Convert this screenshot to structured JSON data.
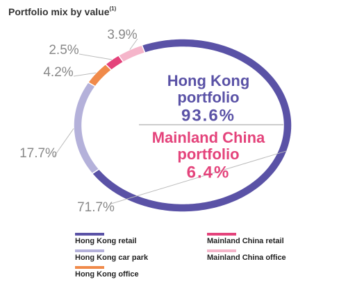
{
  "chart_data": {
    "type": "donut",
    "title": "Portfolio mix by value",
    "title_note": "(1)",
    "categories": [
      "Hong Kong retail",
      "Hong Kong car park",
      "Hong Kong office",
      "Mainland China retail",
      "Mainland China office"
    ],
    "values": [
      71.7,
      17.7,
      4.2,
      2.5,
      3.9
    ],
    "value_labels": [
      "71.7%",
      "17.7%",
      "4.2%",
      "2.5%",
      "3.9%"
    ],
    "colors": [
      "#5a52a6",
      "#b4b1da",
      "#f08a4a",
      "#e4437b",
      "#f5b5ca"
    ],
    "center_groups": [
      {
        "lines": [
          "Hong Kong",
          "portfolio"
        ],
        "total": "93.6%",
        "color": "#5a52a6"
      },
      {
        "lines": [
          "Mainland China",
          "portfolio"
        ],
        "total": "6.4%",
        "color": "#e4437b"
      }
    ]
  }
}
